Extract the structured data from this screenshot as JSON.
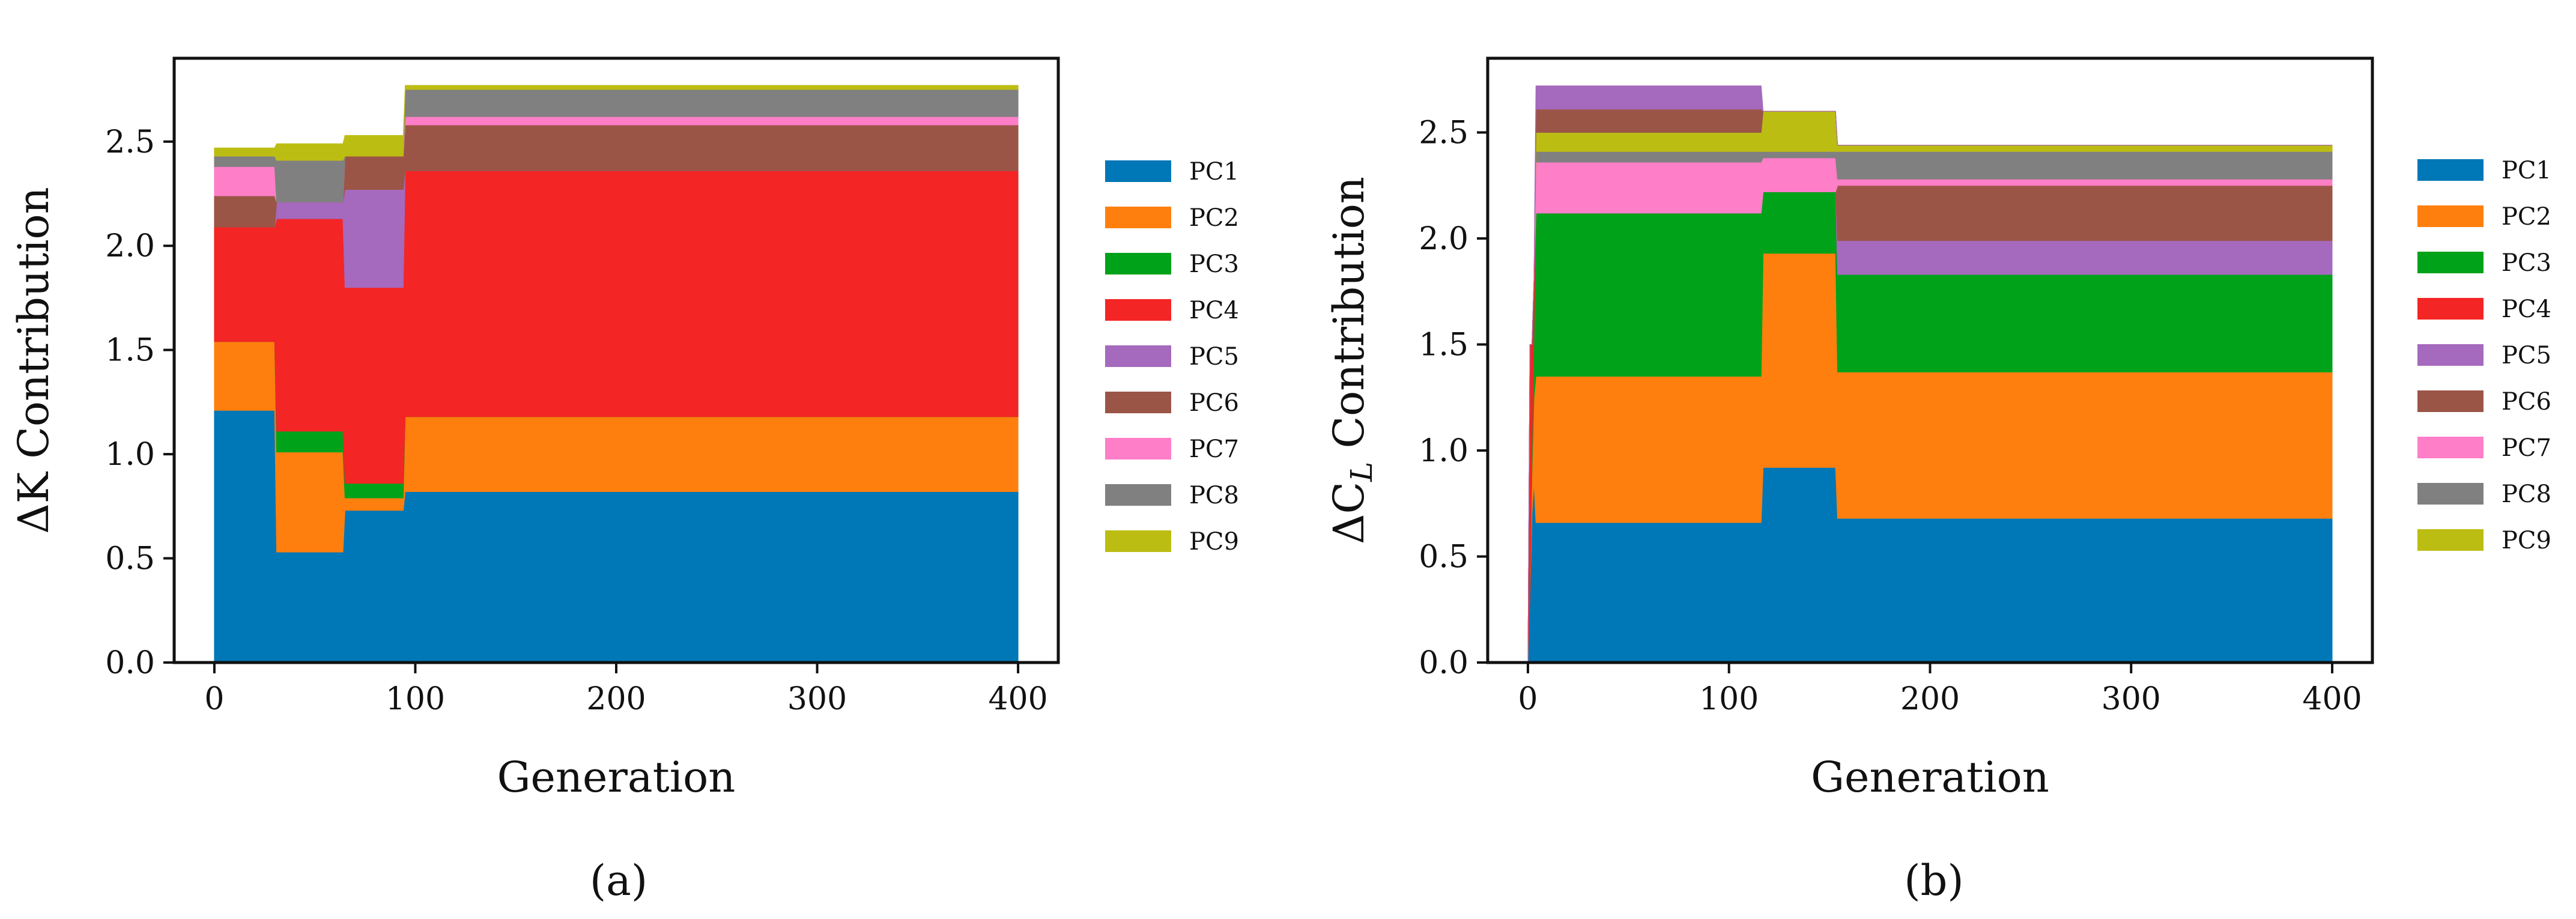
{
  "figure": {
    "panel_labels": [
      "(a)",
      "(b)"
    ],
    "series_colors": {
      "PC1": "#0077b6",
      "PC2": "#ff7f0e",
      "PC3": "#00a21a",
      "PC4": "#f42525",
      "PC5": "#a569bd",
      "PC6": "#9b5547",
      "PC7": "#ff7ec8",
      "PC8": "#808080",
      "PC9": "#bcbd13"
    }
  },
  "chart_data": [
    {
      "type": "area",
      "panel": "(a)",
      "xlabel": "Generation",
      "ylabel": "ΔK Contribution",
      "xlim": [
        -20,
        420
      ],
      "ylim": [
        0,
        2.9
      ],
      "xticks": [
        0,
        100,
        200,
        300,
        400
      ],
      "yticks": [
        0.0,
        0.5,
        1.0,
        1.5,
        2.0,
        2.5
      ],
      "legend": [
        "PC1",
        "PC2",
        "PC3",
        "PC4",
        "PC5",
        "PC6",
        "PC7",
        "PC8",
        "PC9"
      ],
      "x": [
        0,
        30,
        31,
        64,
        65,
        94,
        95,
        400
      ],
      "series": [
        {
          "name": "PC1",
          "values": [
            1.21,
            1.21,
            0.53,
            0.53,
            0.73,
            0.73,
            0.82,
            0.82
          ]
        },
        {
          "name": "PC2",
          "values": [
            0.33,
            0.33,
            0.48,
            0.48,
            0.06,
            0.06,
            0.36,
            0.36
          ]
        },
        {
          "name": "PC3",
          "values": [
            0.0,
            0.0,
            0.1,
            0.1,
            0.07,
            0.07,
            0.0,
            0.0
          ]
        },
        {
          "name": "PC4",
          "values": [
            0.55,
            0.55,
            1.02,
            1.02,
            0.94,
            0.94,
            1.18,
            1.18
          ]
        },
        {
          "name": "PC5",
          "values": [
            0.0,
            0.0,
            0.08,
            0.08,
            0.47,
            0.47,
            0.0,
            0.0
          ]
        },
        {
          "name": "PC6",
          "values": [
            0.15,
            0.15,
            0.0,
            0.0,
            0.16,
            0.16,
            0.22,
            0.22
          ]
        },
        {
          "name": "PC7",
          "values": [
            0.14,
            0.14,
            0.0,
            0.0,
            0.0,
            0.0,
            0.04,
            0.04
          ]
        },
        {
          "name": "PC8",
          "values": [
            0.05,
            0.05,
            0.2,
            0.2,
            0.0,
            0.0,
            0.13,
            0.13
          ]
        },
        {
          "name": "PC9",
          "values": [
            0.04,
            0.04,
            0.08,
            0.08,
            0.1,
            0.1,
            0.02,
            0.02
          ]
        }
      ]
    },
    {
      "type": "area",
      "panel": "(b)",
      "xlabel": "Generation",
      "ylabel": "ΔC_L Contribution",
      "xlim": [
        -20,
        420
      ],
      "ylim": [
        0,
        2.85
      ],
      "xticks": [
        0,
        100,
        200,
        300,
        400
      ],
      "yticks": [
        0.0,
        0.5,
        1.0,
        1.5,
        2.0,
        2.5
      ],
      "legend": [
        "PC1",
        "PC2",
        "PC3",
        "PC4",
        "PC5",
        "PC6",
        "PC7",
        "PC8",
        "PC9"
      ],
      "x": [
        0,
        1,
        2,
        3,
        4,
        5,
        116,
        117,
        153,
        154,
        400
      ],
      "series": [
        {
          "name": "PC1",
          "values": [
            0.0,
            0.3,
            0.7,
            0.85,
            0.66,
            0.66,
            0.66,
            0.92,
            0.92,
            0.68,
            0.68
          ]
        },
        {
          "name": "PC2",
          "values": [
            0.0,
            0.0,
            0.2,
            0.4,
            0.69,
            0.69,
            0.69,
            1.01,
            1.01,
            0.69,
            0.69
          ]
        },
        {
          "name": "PC3",
          "values": [
            0.0,
            0.0,
            0.1,
            0.3,
            0.77,
            0.77,
            0.77,
            0.29,
            0.29,
            0.46,
            0.46
          ]
        },
        {
          "name": "PC4",
          "values": [
            0.0,
            1.2,
            0.5,
            0.25,
            0.0,
            0.0,
            0.0,
            0.0,
            0.0,
            0.0,
            0.0
          ]
        },
        {
          "name": "PC5",
          "values": [
            0.0,
            0.0,
            0.0,
            0.0,
            0.0,
            0.0,
            0.0,
            0.0,
            0.0,
            0.16,
            0.16
          ]
        },
        {
          "name": "PC6",
          "values": [
            0.0,
            0.0,
            0.0,
            0.0,
            0.0,
            0.0,
            0.0,
            0.0,
            0.0,
            0.26,
            0.26
          ]
        },
        {
          "name": "PC7",
          "values": [
            0.0,
            0.0,
            0.0,
            0.0,
            0.24,
            0.24,
            0.24,
            0.16,
            0.16,
            0.03,
            0.03
          ]
        },
        {
          "name": "PC8",
          "values": [
            0.0,
            0.0,
            0.0,
            0.0,
            0.05,
            0.05,
            0.05,
            0.03,
            0.03,
            0.13,
            0.13
          ]
        },
        {
          "name": "PC9",
          "values": [
            0.0,
            0.0,
            0.0,
            0.0,
            0.09,
            0.09,
            0.09,
            0.19,
            0.19,
            0.03,
            0.03
          ]
        },
        {
          "name": "PC6_top",
          "legend_hidden": true,
          "values": [
            0.0,
            0.0,
            0.0,
            0.0,
            0.11,
            0.11,
            0.11,
            0.0,
            0.0,
            0.0,
            0.0
          ]
        },
        {
          "name": "PC5_top",
          "legend_hidden": true,
          "values": [
            0.0,
            0.0,
            0.0,
            0.0,
            0.11,
            0.11,
            0.11,
            0.0,
            0.0,
            0.0,
            0.0
          ]
        }
      ]
    }
  ]
}
